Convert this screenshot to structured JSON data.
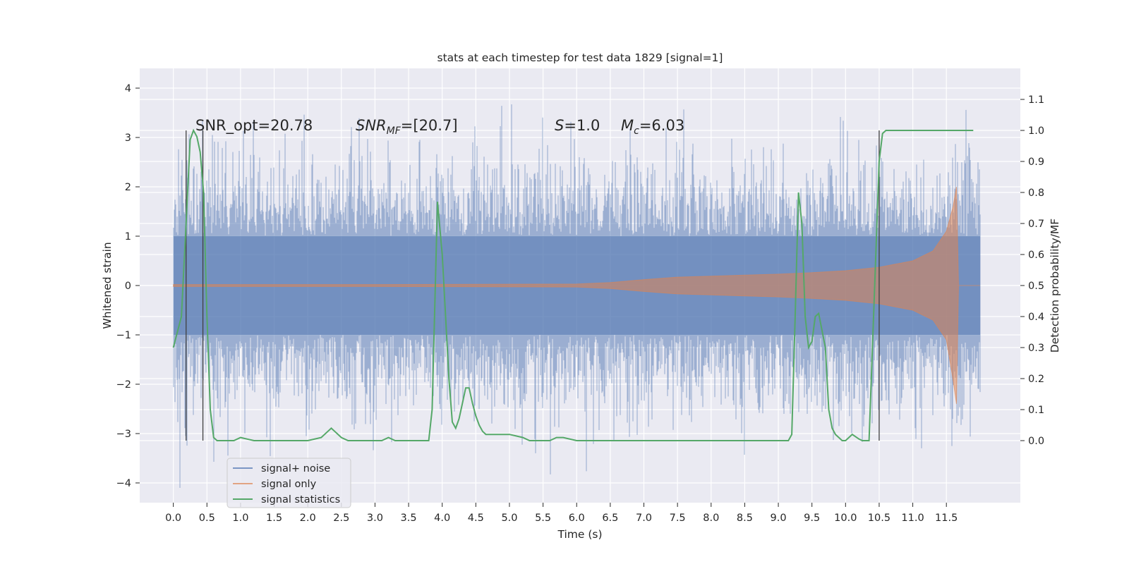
{
  "chart_data": {
    "type": "line",
    "title": "stats at each timestep for test data 1829 [signal=1]",
    "xlabel": "Time (s)",
    "ylabel": "Whitened strain",
    "ylabel_right": "Detection probability/MF",
    "xlim": [
      -0.5,
      12.6
    ],
    "ylim": [
      -4.4,
      4.4
    ],
    "ylim_right": [
      -0.2,
      1.2
    ],
    "x_ticks": [
      "0.0",
      "0.5",
      "1.0",
      "1.5",
      "2.0",
      "2.5",
      "3.0",
      "3.5",
      "4.0",
      "4.5",
      "5.0",
      "5.5",
      "6.0",
      "6.5",
      "7.0",
      "7.5",
      "8.0",
      "8.5",
      "9.0",
      "9.5",
      "10.0",
      "10.5",
      "11.0",
      "11.5"
    ],
    "y_ticks": [
      "4",
      "3",
      "2",
      "1",
      "0",
      "−1",
      "−2",
      "−3",
      "−4"
    ],
    "y_ticks_right": [
      "1.1",
      "1.0",
      "0.9",
      "0.8",
      "0.7",
      "0.6",
      "0.5",
      "0.4",
      "0.3",
      "0.2",
      "0.1",
      "0.0"
    ],
    "grid": true,
    "legend_position": "bottom-left",
    "annotations": {
      "snr_opt": "SNR_opt=20.78",
      "snr_mf_label": "SNR",
      "snr_mf_sub": "MF",
      "snr_mf_value": "=[20.7]",
      "s_label": "S",
      "s_value": "=1.0",
      "mc_label": "M",
      "mc_sub": "c",
      "mc_value": "=6.03"
    },
    "vertical_markers_s": [
      0.19,
      0.44,
      10.5
    ],
    "series": [
      {
        "name": "signal+ noise",
        "color": "#4c72b0",
        "axis": "left",
        "description_values": {
          "t_start": 0.0,
          "t_end": 12.0,
          "typical_envelope": [
            -2.3,
            2.3
          ],
          "max": 3.95,
          "min": -4.1
        }
      },
      {
        "name": "signal only",
        "color": "#dd8452",
        "axis": "left",
        "envelope_points": [
          [
            0.0,
            0.02
          ],
          [
            3.0,
            0.02
          ],
          [
            6.0,
            0.03
          ],
          [
            6.5,
            0.06
          ],
          [
            7.0,
            0.12
          ],
          [
            7.5,
            0.17
          ],
          [
            8.0,
            0.19
          ],
          [
            8.5,
            0.21
          ],
          [
            9.0,
            0.23
          ],
          [
            9.5,
            0.26
          ],
          [
            10.0,
            0.3
          ],
          [
            10.5,
            0.37
          ],
          [
            11.0,
            0.5
          ],
          [
            11.3,
            0.7
          ],
          [
            11.5,
            1.1
          ],
          [
            11.6,
            1.6
          ],
          [
            11.65,
            2.0
          ],
          [
            11.68,
            0.0
          ],
          [
            12.0,
            0.0
          ]
        ]
      },
      {
        "name": "signal statistics",
        "color": "#55a868",
        "axis": "right",
        "x": [
          0.0,
          0.12,
          0.19,
          0.25,
          0.3,
          0.35,
          0.4,
          0.45,
          0.5,
          0.55,
          0.6,
          0.65,
          0.7,
          0.8,
          0.9,
          1.0,
          1.1,
          1.2,
          1.3,
          1.5,
          2.0,
          2.2,
          2.3,
          2.35,
          2.4,
          2.5,
          2.6,
          3.0,
          3.1,
          3.2,
          3.3,
          3.4,
          3.5,
          3.6,
          3.7,
          3.8,
          3.85,
          3.93,
          4.0,
          4.05,
          4.1,
          4.15,
          4.2,
          4.25,
          4.3,
          4.35,
          4.4,
          4.45,
          4.5,
          4.55,
          4.6,
          4.65,
          4.7,
          4.75,
          4.8,
          4.85,
          4.9,
          5.0,
          5.1,
          5.2,
          5.3,
          5.5,
          5.6,
          5.7,
          5.8,
          6.0,
          6.2,
          6.5,
          6.7,
          7.0,
          7.5,
          8.0,
          8.2,
          8.5,
          9.0,
          9.1,
          9.15,
          9.2,
          9.25,
          9.3,
          9.35,
          9.4,
          9.45,
          9.5,
          9.55,
          9.6,
          9.7,
          9.75,
          9.8,
          9.85,
          9.9,
          9.95,
          10.0,
          10.1,
          10.2,
          10.25,
          10.3,
          10.35,
          10.4,
          10.45,
          10.5,
          10.55,
          10.6,
          10.65,
          10.7,
          11.0,
          11.5,
          11.9
        ],
        "values": [
          0.3,
          0.4,
          0.7,
          0.97,
          1.0,
          0.98,
          0.93,
          0.8,
          0.4,
          0.1,
          0.01,
          0.0,
          0.0,
          0.0,
          0.0,
          0.01,
          0.005,
          0.0,
          0.0,
          0.0,
          0.0,
          0.01,
          0.03,
          0.04,
          0.03,
          0.01,
          0.0,
          0.0,
          0.0,
          0.01,
          0.0,
          0.0,
          0.0,
          0.0,
          0.0,
          0.0,
          0.1,
          0.77,
          0.6,
          0.4,
          0.2,
          0.06,
          0.04,
          0.07,
          0.12,
          0.17,
          0.17,
          0.12,
          0.08,
          0.05,
          0.03,
          0.02,
          0.02,
          0.02,
          0.02,
          0.02,
          0.02,
          0.02,
          0.015,
          0.01,
          0.0,
          0.0,
          0.0,
          0.01,
          0.01,
          0.0,
          0.0,
          0.0,
          0.0,
          0.0,
          0.0,
          0.0,
          0.0,
          0.0,
          0.0,
          0.0,
          0.0,
          0.02,
          0.4,
          0.8,
          0.7,
          0.4,
          0.3,
          0.32,
          0.4,
          0.41,
          0.3,
          0.1,
          0.04,
          0.02,
          0.01,
          0.0,
          0.0,
          0.02,
          0.005,
          0.0,
          0.0,
          0.0,
          0.3,
          0.6,
          0.9,
          0.99,
          1.0,
          1.0,
          1.0,
          1.0,
          1.0,
          1.0
        ]
      }
    ]
  }
}
